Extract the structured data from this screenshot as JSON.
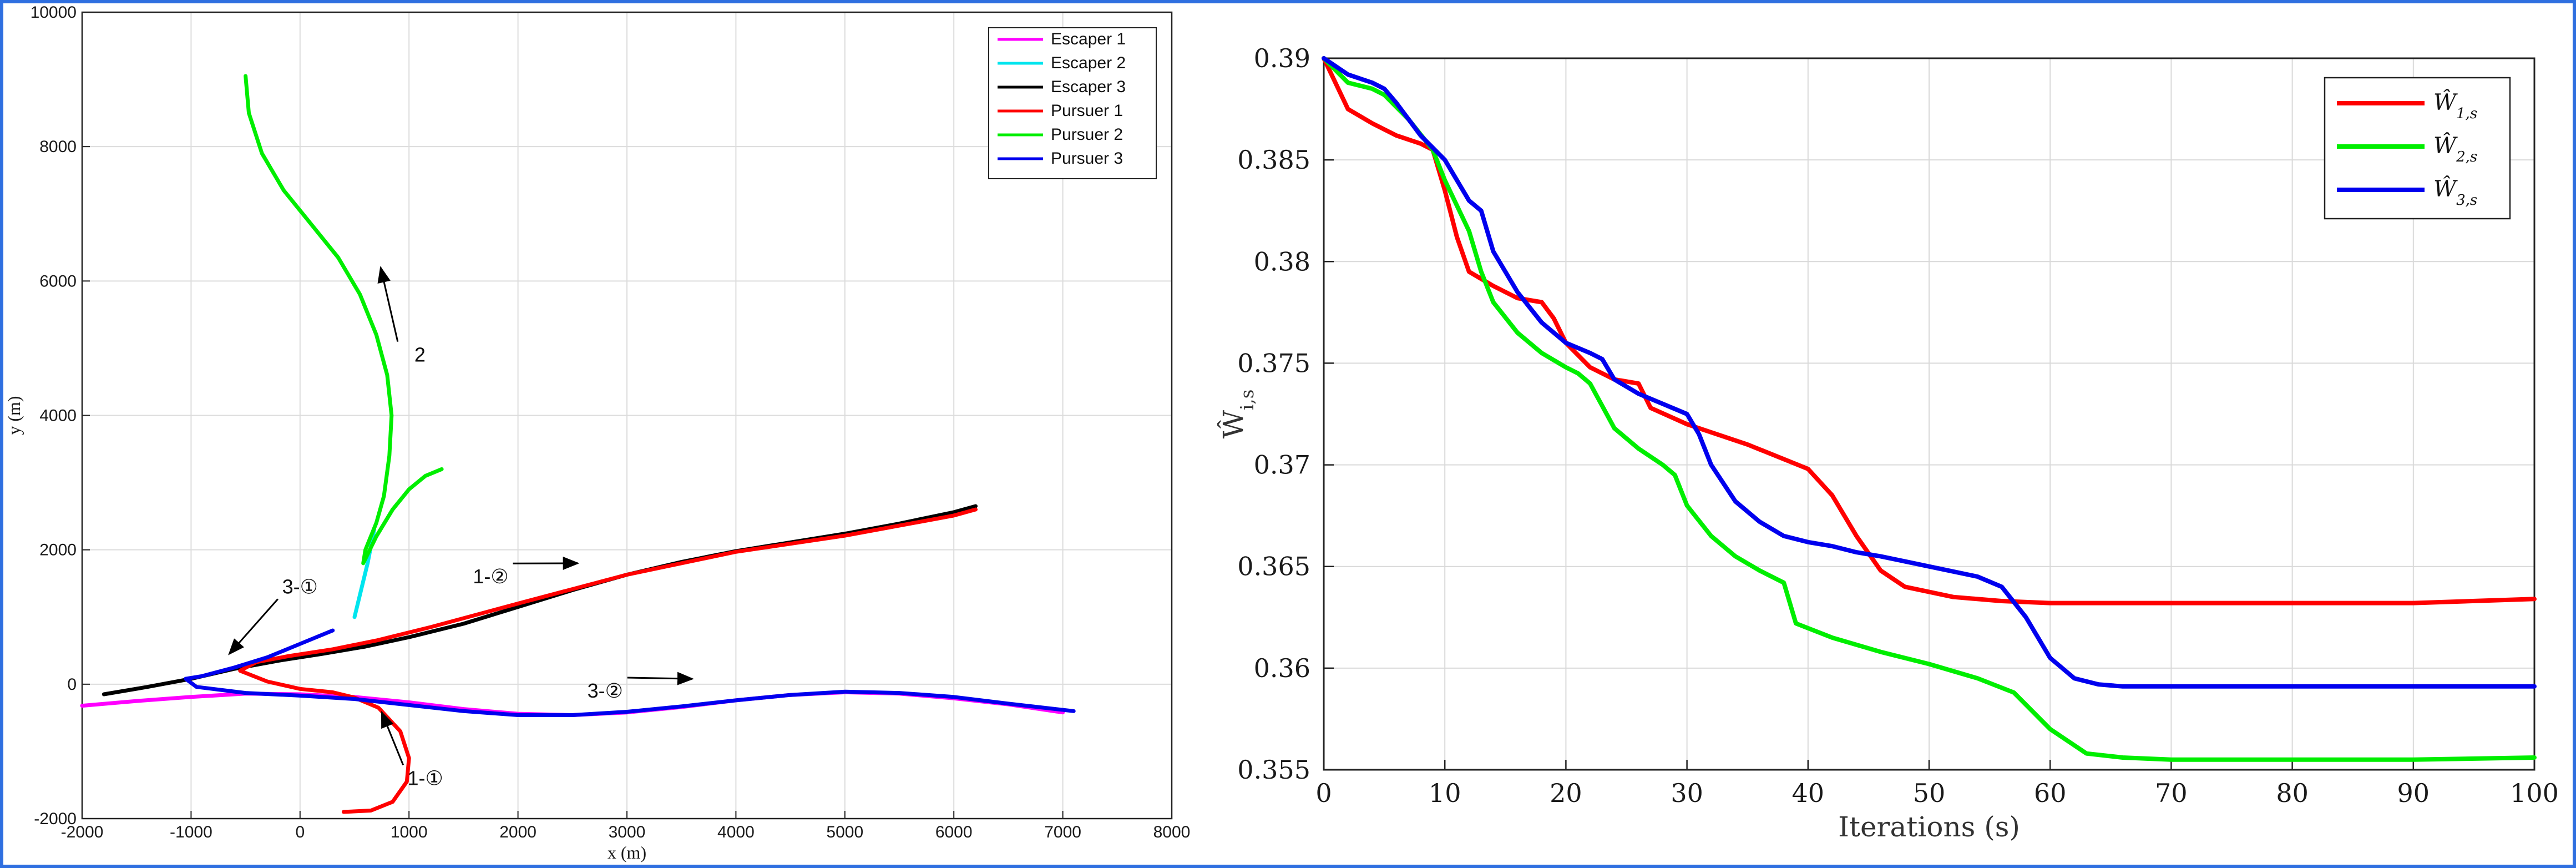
{
  "chart_data": [
    {
      "type": "line",
      "xlabel": "x (m)",
      "ylabel": "y (m)",
      "xlim": [
        -2000,
        8000
      ],
      "ylim": [
        -2000,
        10000
      ],
      "xticks": [
        -2000,
        -1000,
        0,
        1000,
        2000,
        3000,
        4000,
        5000,
        6000,
        7000,
        8000
      ],
      "yticks": [
        -2000,
        0,
        2000,
        4000,
        6000,
        8000,
        10000
      ],
      "grid": true,
      "legend_position": "top-right",
      "series": [
        {
          "name": "Escaper 1",
          "color": "#ff00ff",
          "x": [
            -2000,
            -1500,
            -1000,
            -500,
            0,
            500,
            1000,
            1500,
            2000,
            2500,
            3000,
            3500,
            4000,
            4500,
            5000,
            5500,
            6000,
            6500,
            7000
          ],
          "y": [
            -320,
            -250,
            -190,
            -140,
            -150,
            -190,
            -270,
            -370,
            -440,
            -460,
            -420,
            -340,
            -240,
            -160,
            -120,
            -140,
            -210,
            -300,
            -420
          ]
        },
        {
          "name": "Escaper 2",
          "color": "#00e5ee",
          "x": [
            500,
            560,
            620,
            680
          ],
          "y": [
            1000,
            1400,
            1800,
            2300
          ]
        },
        {
          "name": "Escaper 3",
          "color": "#000000",
          "x": [
            -1800,
            -1400,
            -1000,
            -600,
            -200,
            200,
            600,
            1000,
            1500,
            2000,
            2500,
            3000,
            3500,
            4000,
            4500,
            5000,
            5500,
            6000,
            6200
          ],
          "y": [
            -150,
            -40,
            80,
            230,
            350,
            450,
            560,
            700,
            900,
            1150,
            1400,
            1630,
            1820,
            1980,
            2110,
            2240,
            2390,
            2560,
            2650
          ]
        },
        {
          "name": "Pursuer 1",
          "color": "#ff0000",
          "x": [
            400,
            650,
            850,
            980,
            1000,
            920,
            720,
            500,
            300,
            0,
            -300,
            -550,
            -400,
            -100,
            300,
            700,
            1200,
            2000,
            3000,
            4000,
            5000,
            6000,
            6200
          ],
          "y": [
            -1900,
            -1880,
            -1750,
            -1450,
            -1100,
            -700,
            -350,
            -200,
            -120,
            -70,
            40,
            200,
            330,
            420,
            520,
            650,
            850,
            1200,
            1630,
            1970,
            2210,
            2510,
            2600
          ]
        },
        {
          "name": "Pursuer 2",
          "color": "#00ee00",
          "x": [
            -500,
            -470,
            -350,
            -150,
            100,
            350,
            550,
            700,
            800,
            840,
            820,
            770,
            700,
            600,
            580,
            700,
            850,
            1000,
            1150,
            1300
          ],
          "y": [
            9050,
            8500,
            7900,
            7350,
            6850,
            6350,
            5800,
            5200,
            4600,
            4000,
            3400,
            2800,
            2400,
            2000,
            1800,
            2200,
            2600,
            2900,
            3100,
            3200
          ]
        },
        {
          "name": "Pursuer 3",
          "color": "#0000ee",
          "x": [
            300,
            0,
            -300,
            -600,
            -900,
            -1050,
            -950,
            -500,
            0,
            500,
            1000,
            1500,
            2000,
            2500,
            3000,
            3500,
            4000,
            4500,
            5000,
            5500,
            6000,
            6500,
            7100
          ],
          "y": [
            800,
            600,
            400,
            250,
            120,
            80,
            -40,
            -130,
            -170,
            -220,
            -310,
            -400,
            -460,
            -460,
            -410,
            -330,
            -240,
            -160,
            -110,
            -130,
            -190,
            -290,
            -400
          ]
        }
      ],
      "annotations": [
        {
          "text": "2",
          "at": [
            1100,
            4800
          ],
          "arrow_to": [
            740,
            6200
          ]
        },
        {
          "text": "3-①",
          "at": [
            0,
            1350
          ],
          "arrow_to": [
            -650,
            450
          ]
        },
        {
          "text": "1-②",
          "at": [
            1750,
            1500
          ],
          "arrow_to": [
            2550,
            1800
          ]
        },
        {
          "text": "3-②",
          "at": [
            2800,
            -200
          ],
          "arrow_to": [
            3600,
            80
          ]
        },
        {
          "text": "1-①",
          "at": [
            1150,
            -1500
          ],
          "arrow_to": [
            750,
            -420
          ]
        }
      ]
    },
    {
      "type": "line",
      "xlabel": "Iterations (s)",
      "ylabel": "Ŵ_{i,s}",
      "xlim": [
        0,
        100
      ],
      "ylim": [
        0.355,
        0.39
      ],
      "xticks": [
        0,
        10,
        20,
        30,
        40,
        50,
        60,
        70,
        80,
        90,
        100
      ],
      "yticks": [
        0.355,
        0.36,
        0.365,
        0.37,
        0.375,
        0.38,
        0.385,
        0.39
      ],
      "ytick_labels": [
        "0.355",
        "0.36",
        "0.365",
        "0.37",
        "0.375",
        "0.38",
        "0.385",
        "0.39"
      ],
      "grid": true,
      "legend_position": "top-right",
      "series": [
        {
          "name": "Ŵ_{1,s}",
          "color": "#ff0000",
          "x": [
            0,
            2,
            4,
            6,
            8,
            9,
            10,
            11,
            12,
            14,
            16,
            18,
            19,
            20,
            22,
            24,
            26,
            27,
            30,
            35,
            40,
            42,
            44,
            46,
            48,
            52,
            56,
            60,
            70,
            80,
            90,
            100
          ],
          "y": [
            0.39,
            0.3875,
            0.3868,
            0.3862,
            0.3858,
            0.3855,
            0.3835,
            0.3812,
            0.3795,
            0.3788,
            0.3782,
            0.378,
            0.3772,
            0.376,
            0.3748,
            0.3742,
            0.374,
            0.3728,
            0.372,
            0.371,
            0.3698,
            0.3685,
            0.3665,
            0.3648,
            0.364,
            0.3635,
            0.3633,
            0.3632,
            0.3632,
            0.3632,
            0.3632,
            0.3634
          ]
        },
        {
          "name": "Ŵ_{2,s}",
          "color": "#00ee00",
          "x": [
            0,
            2,
            4,
            5,
            7,
            9,
            10,
            12,
            13,
            14,
            16,
            18,
            20,
            21,
            22,
            24,
            26,
            28,
            29,
            30,
            32,
            34,
            36,
            37,
            38,
            39,
            42,
            46,
            50,
            54,
            57,
            60,
            63,
            66,
            70,
            80,
            90,
            100
          ],
          "y": [
            0.39,
            0.3888,
            0.3885,
            0.3882,
            0.387,
            0.3855,
            0.384,
            0.3815,
            0.3795,
            0.378,
            0.3765,
            0.3755,
            0.3748,
            0.3745,
            0.374,
            0.3718,
            0.3708,
            0.37,
            0.3695,
            0.368,
            0.3665,
            0.3655,
            0.3648,
            0.3645,
            0.3642,
            0.3622,
            0.3615,
            0.3608,
            0.3602,
            0.3595,
            0.3588,
            0.357,
            0.3558,
            0.3556,
            0.3555,
            0.3555,
            0.3555,
            0.3556
          ]
        },
        {
          "name": "Ŵ_{3,s}",
          "color": "#0000ee",
          "x": [
            0,
            2,
            4,
            5,
            6,
            8,
            10,
            11,
            12,
            13,
            14,
            16,
            18,
            20,
            22,
            23,
            24,
            26,
            28,
            30,
            31,
            32,
            34,
            36,
            38,
            40,
            42,
            44,
            46,
            50,
            54,
            56,
            58,
            60,
            62,
            64,
            66,
            70,
            80,
            90,
            100
          ],
          "y": [
            0.39,
            0.3892,
            0.3888,
            0.3885,
            0.3878,
            0.3862,
            0.385,
            0.384,
            0.383,
            0.3825,
            0.3805,
            0.3785,
            0.377,
            0.376,
            0.3755,
            0.3752,
            0.3742,
            0.3735,
            0.373,
            0.3725,
            0.3715,
            0.37,
            0.3682,
            0.3672,
            0.3665,
            0.3662,
            0.366,
            0.3657,
            0.3655,
            0.365,
            0.3645,
            0.364,
            0.3625,
            0.3605,
            0.3595,
            0.3592,
            0.3591,
            0.3591,
            0.3591,
            0.3591,
            0.3591
          ]
        }
      ]
    }
  ]
}
